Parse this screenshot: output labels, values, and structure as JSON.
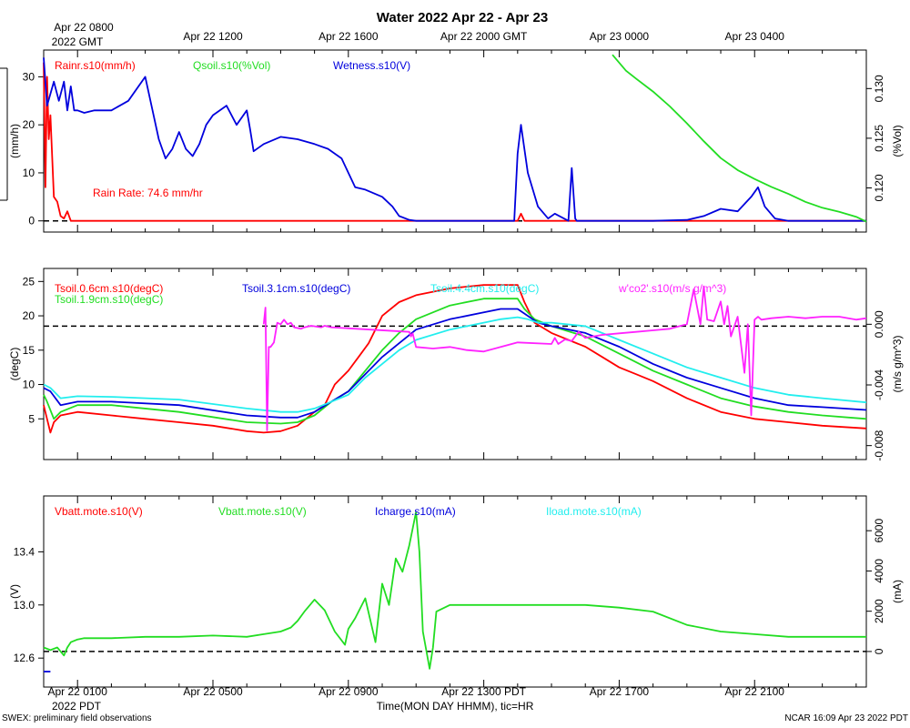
{
  "title": "Water 2022 Apr 22 - Apr 23",
  "top_axis": {
    "origin_label": "Apr 22 0800",
    "origin_sublabel": "2022 GMT",
    "labels": [
      "Apr 22 1200",
      "Apr 22 1600",
      "Apr 22 2000 GMT",
      "Apr 23 0000",
      "Apr 23 0400"
    ]
  },
  "bottom_axis": {
    "labels": [
      "Apr 22 0100",
      "Apr 22 0500",
      "Apr 22 0900",
      "Apr 22 1300 PDT",
      "Apr 22 1700",
      "Apr 22 2100"
    ],
    "year_label": "2022 PDT",
    "xlabel": "Time(MON DAY HHMM), tic=HR"
  },
  "footer": {
    "left": "SWEX: preliminary field observations",
    "right": "NCAR 16:09 Apr 23 2022 PDT"
  },
  "colors": {
    "red": "#ff0000",
    "green": "#22dd22",
    "blue": "#0000dd",
    "cyan": "#22eeee",
    "magenta": "#ff22ff"
  },
  "chart_data": [
    {
      "type": "line",
      "name": "panel-rain-soil",
      "x_units": "hours since Apr 22 0000 PDT",
      "xlim": [
        0,
        24.3
      ],
      "ylim_left": [
        -1,
        35
      ],
      "ylim_right": [
        0.1162,
        0.1336
      ],
      "ylabel_left": "(mm/h)",
      "ylabel_right": "(%Vol)",
      "left_ticks": [
        0,
        10,
        20,
        30
      ],
      "right_ticks": [
        0.12,
        0.125,
        0.13
      ],
      "right_tick_labels": [
        "0.120",
        "0.125",
        "0.130"
      ],
      "reference_line": 0,
      "annotation": "Rain Rate: 74.6 mm/hr",
      "legend": [
        {
          "label": "Rainr.s10(mm/h)",
          "color": "#ff0000"
        },
        {
          "label": "Qsoil.s10(%Vol)",
          "color": "#22dd22"
        },
        {
          "label": "Wetness.s10(V)",
          "color": "#0000dd"
        }
      ],
      "series": [
        {
          "name": "Rainr.s10",
          "axis": "left",
          "color": "#ff0000",
          "x": [
            0,
            0.05,
            0.1,
            0.15,
            0.2,
            0.3,
            0.4,
            0.5,
            0.6,
            0.7,
            0.8,
            1.0,
            2,
            4,
            8,
            12,
            14.0,
            14.1,
            14.2,
            14.3,
            16,
            20,
            24.3
          ],
          "y": [
            33,
            7,
            30,
            17,
            22,
            5,
            4,
            1,
            0.5,
            2,
            0,
            0,
            0,
            0,
            0,
            0,
            0,
            1.5,
            0,
            0,
            0,
            0,
            0
          ]
        },
        {
          "name": "Wetness.s10",
          "axis": "left",
          "color": "#0000dd",
          "x": [
            0,
            0.1,
            0.3,
            0.45,
            0.6,
            0.7,
            0.8,
            0.9,
            1.0,
            1.2,
            1.5,
            2.0,
            2.5,
            3.0,
            3.4,
            3.6,
            3.8,
            4.0,
            4.2,
            4.4,
            4.6,
            4.8,
            5.0,
            5.4,
            5.7,
            6.0,
            6.1,
            6.2,
            6.5,
            7.0,
            7.5,
            8.0,
            8.4,
            8.8,
            9.0,
            9.2,
            9.5,
            10.0,
            10.3,
            10.5,
            10.8,
            11,
            12,
            13,
            13.9,
            14.0,
            14.1,
            14.3,
            14.6,
            14.9,
            15.1,
            15.5,
            15.6,
            15.7,
            15.75,
            16,
            17,
            18,
            19,
            19.5,
            20,
            20.5,
            20.9,
            21.1,
            21.3,
            21.6,
            22,
            24.3
          ],
          "y": [
            34,
            24,
            29,
            25,
            29,
            23,
            28,
            23,
            23,
            22.5,
            23,
            23,
            25,
            30,
            17,
            13,
            15,
            18.5,
            15,
            13.5,
            16,
            20,
            22,
            24,
            20,
            23,
            19,
            14.5,
            16,
            17.5,
            17,
            16,
            15,
            13,
            10,
            7,
            6.5,
            5,
            3,
            1,
            0.2,
            0,
            0,
            0,
            0,
            14,
            20,
            10,
            3,
            0.5,
            1.5,
            0,
            11,
            0.5,
            0,
            0,
            0,
            0,
            0.2,
            1,
            2.5,
            2,
            5,
            7,
            3,
            0.5,
            0,
            0
          ]
        },
        {
          "name": "Qsoil.s10",
          "axis": "right",
          "color": "#22dd22",
          "x": [
            16.8,
            17.2,
            17.5,
            18,
            18.5,
            19,
            19.5,
            20,
            20.5,
            21,
            21.5,
            22,
            22.5,
            23,
            23.5,
            24,
            24.3
          ],
          "y": [
            0.1334,
            0.1318,
            0.131,
            0.1297,
            0.1282,
            0.1265,
            0.1247,
            0.123,
            0.1218,
            0.1209,
            0.1201,
            0.1194,
            0.1186,
            0.118,
            0.1176,
            0.1171,
            0.1166
          ]
        }
      ]
    },
    {
      "type": "line",
      "name": "panel-soil-temp",
      "x_units": "hours since Apr 22 0000 PDT",
      "xlim": [
        0,
        24.3
      ],
      "ylim_left": [
        0,
        26.5
      ],
      "ylim_right": [
        -0.0085,
        0.0035
      ],
      "ylabel_left": "(degC)",
      "ylabel_right": "(m/s g/m^3)",
      "left_ticks": [
        5,
        10,
        15,
        20,
        25
      ],
      "right_ticks": [
        -0.008,
        -0.004,
        0.0
      ],
      "right_tick_labels": [
        "-0.008",
        "-0.004",
        "0.000"
      ],
      "reference_line": 18.5,
      "legend": [
        {
          "label": "Tsoil.0.6cm.s10(degC)",
          "color": "#ff0000"
        },
        {
          "label": "Tsoil.1.9cm.s10(degC)",
          "color": "#22dd22"
        },
        {
          "label": "Tsoil.3.1cm.s10(degC)",
          "color": "#0000dd"
        },
        {
          "label": "Tsoil.4.4cm.s10(degC)",
          "color": "#22eeee"
        },
        {
          "label": "w'co2'.s10(m/s g/m^3)",
          "color": "#ff22ff"
        }
      ],
      "series": [
        {
          "name": "Tsoil.0.6cm.s10",
          "axis": "left",
          "color": "#ff0000",
          "x": [
            0,
            0.1,
            0.2,
            0.3,
            0.5,
            1,
            2,
            3,
            4,
            5,
            6,
            6.5,
            7,
            7.5,
            8,
            8.3,
            8.6,
            9,
            9.3,
            9.6,
            10,
            10.5,
            11,
            11.5,
            12,
            13,
            13.5,
            14,
            14.2,
            14.5,
            15,
            15.5,
            16,
            16.5,
            17,
            17.5,
            18,
            19,
            20,
            21,
            22,
            23,
            24.3
          ],
          "y": [
            7,
            5,
            3,
            4.5,
            5.5,
            6,
            5.5,
            5,
            4.5,
            4,
            3.2,
            3,
            3.2,
            4,
            6,
            7,
            10,
            12,
            14,
            16,
            20,
            22,
            23,
            23.5,
            24,
            24.5,
            24.5,
            24.5,
            22,
            19,
            17.5,
            16.5,
            15.5,
            14,
            12.5,
            11.5,
            10.5,
            8,
            6,
            5,
            4.5,
            4,
            3.6
          ]
        },
        {
          "name": "Tsoil.1.9cm.s10",
          "axis": "left",
          "color": "#22dd22",
          "x": [
            0,
            0.1,
            0.3,
            0.5,
            1,
            2,
            4,
            6,
            7,
            7.5,
            8,
            8.5,
            9,
            9.5,
            10,
            10.5,
            11,
            12,
            13,
            13.5,
            14,
            14.2,
            14.5,
            15,
            16,
            17,
            18,
            19,
            20,
            21,
            22,
            23,
            24.3
          ],
          "y": [
            8.5,
            7.5,
            5,
            6,
            7,
            7,
            6,
            4.5,
            4.3,
            4.5,
            5.5,
            7.5,
            9,
            12,
            15,
            17.5,
            19.5,
            21.5,
            22.5,
            22.5,
            22.5,
            21,
            19.5,
            18.5,
            17,
            14.5,
            12,
            10,
            8,
            6.8,
            6,
            5.5,
            5
          ]
        },
        {
          "name": "Tsoil.3.1cm.s10",
          "axis": "left",
          "color": "#0000dd",
          "x": [
            0,
            0.2,
            0.5,
            1,
            2,
            4,
            6,
            7,
            7.5,
            8,
            8.5,
            9,
            9.5,
            10,
            10.5,
            11,
            12,
            13,
            13.5,
            14,
            14.3,
            14.6,
            15,
            16,
            17,
            18,
            19,
            20,
            21,
            22,
            23,
            24.3
          ],
          "y": [
            9.5,
            9,
            7,
            7.5,
            7.5,
            7,
            5.5,
            5.2,
            5.2,
            6,
            7.5,
            9,
            11.5,
            14,
            16,
            18,
            19.5,
            20.5,
            21,
            21,
            20,
            19,
            18.5,
            17.5,
            15.5,
            13,
            11,
            9.5,
            8,
            7,
            6.7,
            6.3
          ]
        },
        {
          "name": "Tsoil.4.4cm.s10",
          "axis": "left",
          "color": "#22eeee",
          "x": [
            0,
            0.2,
            0.5,
            1,
            2,
            4,
            6,
            7,
            7.5,
            8,
            8.5,
            9,
            9.5,
            10,
            10.5,
            11,
            12,
            13,
            13.5,
            14,
            14.3,
            14.6,
            15,
            16,
            17,
            18,
            19,
            20,
            21,
            22,
            23,
            24.3
          ],
          "y": [
            10,
            9.5,
            8,
            8.3,
            8.2,
            7.8,
            6.5,
            6,
            6,
            6.5,
            7.5,
            8.5,
            11,
            13,
            15,
            16.5,
            18,
            19,
            19.5,
            19.8,
            19.5,
            19,
            19,
            18.5,
            16.5,
            14.5,
            12.5,
            11,
            9.5,
            8.5,
            8,
            7.4
          ]
        },
        {
          "name": "w'co2'.s10",
          "axis": "right",
          "color": "#ff22ff",
          "x": [
            6.5,
            6.55,
            6.6,
            6.65,
            6.7,
            6.8,
            6.9,
            7.0,
            7.1,
            7.2,
            7.3,
            7.4,
            7.6,
            7.7,
            7.9,
            8.2,
            8.3,
            8.5,
            10.8,
            10.85,
            10.9,
            11,
            11.5,
            12,
            12.5,
            13,
            13.5,
            14,
            15,
            15.1,
            15.2,
            15.4,
            15.6,
            15.8,
            16,
            16.5,
            17,
            17.5,
            18,
            18.5,
            19,
            19.2,
            19.4,
            19.5,
            19.6,
            19.8,
            20.0,
            20.1,
            20.2,
            20.3,
            20.5,
            20.7,
            20.8,
            20.9,
            21.0,
            21.1,
            21.2,
            21.5,
            22,
            22.5,
            23,
            23.5,
            24,
            24.3
          ],
          "y": [
            0.0,
            0.0011,
            -0.007,
            -0.0015,
            -0.0015,
            -0.0012,
            0.0001,
            0.0,
            0.0003,
            0.0,
            0.0001,
            -0.0002,
            -0.0003,
            -0.0002,
            -0.0001,
            -0.0002,
            -0.0001,
            -0.0002,
            -0.0005,
            -0.0008,
            -0.0006,
            -0.0015,
            -0.0016,
            -0.0015,
            -0.0017,
            -0.0018,
            -0.0015,
            -0.0012,
            -0.0013,
            -0.0009,
            -0.0013,
            -0.001,
            -0.0011,
            -0.0005,
            -0.0009,
            -0.0007,
            -0.0006,
            -0.0005,
            -0.0004,
            -0.0003,
            0.0,
            0.0023,
            0.0,
            0.0025,
            0.0003,
            0.0002,
            0.0015,
            0.0,
            0.0012,
            -0.0008,
            0.0005,
            -0.0032,
            0.0,
            -0.006,
            0.0003,
            0.0005,
            0.0003,
            0.0004,
            0.0005,
            0.0004,
            0.0005,
            0.0005,
            0.0003,
            0.0004
          ]
        }
      ]
    },
    {
      "type": "line",
      "name": "panel-battery",
      "x_units": "hours since Apr 22 0000 PDT",
      "xlim": [
        0,
        24.3
      ],
      "ylim_left": [
        12.43,
        13.8
      ],
      "ylim_right": [
        -1450,
        7590
      ],
      "ylabel_left": "(V)",
      "ylabel_right": "(mA)",
      "left_ticks": [
        12.6,
        13.0,
        13.4
      ],
      "left_tick_labels": [
        "12.6",
        "13.0",
        "13.4"
      ],
      "right_ticks": [
        0,
        2000,
        4000,
        6000
      ],
      "reference_line_right": 0,
      "legend": [
        {
          "label": "Vbatt.mote.s10(V)",
          "color": "#ff0000"
        },
        {
          "label": "Vbatt.mote.s10(V)",
          "color": "#22dd22"
        },
        {
          "label": "Icharge.s10(mA)",
          "color": "#0000dd"
        },
        {
          "label": "Iload.mote.s10(mA)",
          "color": "#22eeee"
        }
      ],
      "series": [
        {
          "name": "Vbatt.mote.s10",
          "axis": "left",
          "color": "#22dd22",
          "x": [
            0,
            0.2,
            0.4,
            0.6,
            0.7,
            0.8,
            1.0,
            1.2,
            1.5,
            2,
            3,
            4,
            5,
            6,
            6.5,
            7,
            7.3,
            7.5,
            7.7,
            8,
            8.3,
            8.6,
            8.9,
            9.0,
            9.2,
            9.5,
            9.8,
            10.0,
            10.2,
            10.4,
            10.6,
            10.8,
            11.0,
            11.1,
            11.2,
            11.4,
            11.5,
            11.6,
            12,
            13,
            14,
            15,
            16,
            17,
            18,
            19,
            20,
            21,
            22,
            23,
            24.3
          ],
          "y": [
            12.68,
            12.66,
            12.68,
            12.62,
            12.68,
            12.72,
            12.74,
            12.75,
            12.75,
            12.75,
            12.76,
            12.76,
            12.77,
            12.76,
            12.78,
            12.8,
            12.83,
            12.88,
            12.95,
            13.04,
            12.96,
            12.8,
            12.7,
            12.82,
            12.9,
            13.05,
            12.72,
            13.16,
            13.0,
            13.35,
            13.25,
            13.45,
            13.7,
            13.4,
            12.8,
            12.52,
            12.68,
            12.95,
            13.0,
            13.0,
            13.0,
            13.0,
            13.0,
            12.98,
            12.95,
            12.85,
            12.8,
            12.78,
            12.76,
            12.76,
            12.76
          ]
        },
        {
          "name": "Icharge.s10",
          "axis": "right",
          "color": "#0000dd",
          "x": [
            0,
            0.2
          ],
          "y": [
            -1000,
            -1000
          ]
        }
      ]
    }
  ]
}
